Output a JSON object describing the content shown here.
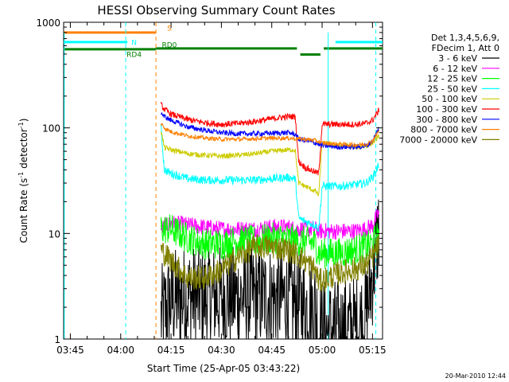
{
  "chart_data": {
    "type": "line",
    "title": "HESSI Observing Summary Count Rates",
    "xlabel": "Start Time (25-Apr-05 03:43:22)",
    "ylabel_main": "Count Rate (s",
    "ylabel_sup1": "-1",
    "ylabel_mid": " detector",
    "ylabel_sup2": "-1",
    "ylabel_end": ")",
    "yscale": "log",
    "ylim": [
      1,
      1000
    ],
    "xlim_min": [
      -2,
      93
    ],
    "x_units": "minutes after 03:45",
    "x_ticks": [
      {
        "value": 0,
        "label": "03:45"
      },
      {
        "value": 15,
        "label": "04:00"
      },
      {
        "value": 30,
        "label": "04:15"
      },
      {
        "value": 45,
        "label": "04:30"
      },
      {
        "value": 60,
        "label": "04:45"
      },
      {
        "value": 75,
        "label": "05:00"
      },
      {
        "value": 90,
        "label": "05:15"
      }
    ],
    "y_ticks": [
      {
        "value": 1,
        "label": "1"
      },
      {
        "value": 10,
        "label": "10"
      },
      {
        "value": 100,
        "label": "100"
      },
      {
        "value": 1000,
        "label": "1000"
      }
    ],
    "legend_header": [
      "Det 1,3,4,5,6,9,",
      "FDecim 1, Att 0"
    ],
    "series": [
      {
        "name": "3 - 6 keV",
        "color": "#000000",
        "noise": 0.5,
        "values": [
          [
            27,
            1.6
          ],
          [
            30,
            2.3
          ],
          [
            35,
            2.5
          ],
          [
            40,
            2.5
          ],
          [
            45,
            2.5
          ],
          [
            50,
            2.5
          ],
          [
            55,
            2.5
          ],
          [
            60,
            2.5
          ],
          [
            64,
            2.4
          ],
          [
            67,
            2.2
          ],
          [
            70,
            2.0
          ],
          [
            73,
            2.0
          ],
          [
            74,
            1.2
          ],
          [
            77,
            1.2
          ],
          [
            80,
            1.2
          ],
          [
            85,
            1.3
          ],
          [
            88,
            1.6
          ],
          [
            90,
            4.0
          ],
          [
            92,
            12
          ]
        ]
      },
      {
        "name": "6 - 12 keV",
        "color": "#ff00ff",
        "noise": 0.08,
        "values": [
          [
            27,
            11
          ],
          [
            30,
            12.5
          ],
          [
            35,
            12
          ],
          [
            40,
            11.5
          ],
          [
            45,
            11
          ],
          [
            50,
            11
          ],
          [
            55,
            11
          ],
          [
            60,
            11.5
          ],
          [
            65,
            11.5
          ],
          [
            67,
            11
          ],
          [
            70,
            11
          ],
          [
            73,
            11
          ],
          [
            74,
            10.5
          ],
          [
            77,
            10.5
          ],
          [
            80,
            10.5
          ],
          [
            85,
            10.5
          ],
          [
            88,
            11
          ],
          [
            90,
            12
          ],
          [
            92,
            16
          ]
        ]
      },
      {
        "name": "12 - 25 keV",
        "color": "#00ff00",
        "noise": 0.15,
        "values": [
          [
            27,
            11
          ],
          [
            30,
            11
          ],
          [
            35,
            9
          ],
          [
            40,
            8
          ],
          [
            45,
            8
          ],
          [
            50,
            8.5
          ],
          [
            55,
            8.5
          ],
          [
            60,
            9
          ],
          [
            65,
            9
          ],
          [
            67,
            8.5
          ],
          [
            70,
            8.5
          ],
          [
            73,
            8
          ],
          [
            74,
            6.5
          ],
          [
            77,
            6.5
          ],
          [
            80,
            6.5
          ],
          [
            85,
            7
          ],
          [
            88,
            7.5
          ],
          [
            90,
            8
          ],
          [
            92,
            10
          ]
        ]
      },
      {
        "name": "25 - 50 keV",
        "color": "#00ffff",
        "noise": 0.04,
        "values": [
          [
            27,
            100
          ],
          [
            28,
            40
          ],
          [
            30,
            37
          ],
          [
            35,
            33
          ],
          [
            40,
            32
          ],
          [
            45,
            32
          ],
          [
            50,
            32
          ],
          [
            55,
            32
          ],
          [
            60,
            33
          ],
          [
            65,
            34
          ],
          [
            67,
            33
          ],
          [
            68,
            14
          ],
          [
            70,
            13
          ],
          [
            73,
            12
          ],
          [
            74,
            11
          ],
          [
            75,
            28
          ],
          [
            80,
            28
          ],
          [
            85,
            29
          ],
          [
            88,
            30
          ],
          [
            90,
            34
          ],
          [
            92,
            45
          ]
        ]
      },
      {
        "name": "50 - 100 keV",
        "color": "#cccc00",
        "noise": 0.025,
        "values": [
          [
            27,
            95
          ],
          [
            28,
            65
          ],
          [
            30,
            62
          ],
          [
            35,
            57
          ],
          [
            40,
            55
          ],
          [
            45,
            54
          ],
          [
            50,
            55
          ],
          [
            55,
            57
          ],
          [
            60,
            60
          ],
          [
            65,
            62
          ],
          [
            67,
            62
          ],
          [
            68,
            30
          ],
          [
            70,
            28
          ],
          [
            73,
            25
          ],
          [
            74,
            23
          ],
          [
            75,
            72
          ],
          [
            80,
            68
          ],
          [
            85,
            66
          ],
          [
            88,
            67
          ],
          [
            90,
            72
          ],
          [
            92,
            85
          ]
        ]
      },
      {
        "name": "100 - 300 keV",
        "color": "#ff0000",
        "noise": 0.03,
        "values": [
          [
            27,
            165
          ],
          [
            28,
            150
          ],
          [
            30,
            135
          ],
          [
            35,
            120
          ],
          [
            40,
            112
          ],
          [
            45,
            108
          ],
          [
            50,
            110
          ],
          [
            55,
            115
          ],
          [
            60,
            122
          ],
          [
            65,
            128
          ],
          [
            67,
            128
          ],
          [
            68,
            48
          ],
          [
            70,
            42
          ],
          [
            73,
            38
          ],
          [
            74,
            37
          ],
          [
            75,
            108
          ],
          [
            80,
            108
          ],
          [
            85,
            108
          ],
          [
            88,
            110
          ],
          [
            90,
            118
          ],
          [
            92,
            148
          ]
        ]
      },
      {
        "name": "300 - 800 keV",
        "color": "#0000ff",
        "noise": 0.025,
        "values": [
          [
            27,
            140
          ],
          [
            28,
            128
          ],
          [
            30,
            118
          ],
          [
            35,
            102
          ],
          [
            40,
            95
          ],
          [
            45,
            90
          ],
          [
            50,
            88
          ],
          [
            55,
            88
          ],
          [
            60,
            89
          ],
          [
            65,
            90
          ],
          [
            67,
            87
          ],
          [
            68,
            78
          ],
          [
            70,
            76
          ],
          [
            73,
            72
          ],
          [
            75,
            68
          ],
          [
            80,
            66
          ],
          [
            85,
            66
          ],
          [
            88,
            67
          ],
          [
            90,
            75
          ],
          [
            92,
            100
          ]
        ]
      },
      {
        "name": "800 - 7000 keV",
        "color": "#ff8000",
        "noise": 0.02,
        "values": [
          [
            27,
            110
          ],
          [
            28,
            100
          ],
          [
            30,
            92
          ],
          [
            35,
            84
          ],
          [
            40,
            80
          ],
          [
            45,
            78
          ],
          [
            50,
            78
          ],
          [
            55,
            79
          ],
          [
            60,
            80
          ],
          [
            65,
            80
          ],
          [
            67,
            79
          ],
          [
            70,
            78
          ],
          [
            73,
            76
          ],
          [
            75,
            72
          ],
          [
            80,
            70
          ],
          [
            85,
            69
          ],
          [
            88,
            70
          ],
          [
            90,
            75
          ],
          [
            92,
            95
          ]
        ]
      },
      {
        "name": "7000 - 20000 keV",
        "color": "#808000",
        "noise": 0.12,
        "values": [
          [
            27,
            7
          ],
          [
            30,
            5.5
          ],
          [
            35,
            3.8
          ],
          [
            40,
            3.8
          ],
          [
            45,
            4.5
          ],
          [
            50,
            6
          ],
          [
            55,
            7.5
          ],
          [
            60,
            7.5
          ],
          [
            65,
            7
          ],
          [
            67,
            6.5
          ],
          [
            70,
            5.5
          ],
          [
            73,
            4.5
          ],
          [
            74,
            3.5
          ],
          [
            77,
            3.8
          ],
          [
            80,
            4.2
          ],
          [
            85,
            4.6
          ],
          [
            88,
            5
          ],
          [
            90,
            6
          ],
          [
            92,
            8
          ]
        ]
      }
    ],
    "flags": [
      {
        "label": "S",
        "color": "#ff8000",
        "x_start": -2,
        "x_end": 25.5,
        "level": 800
      },
      {
        "label": "N",
        "color": "#00ffff",
        "x_start": -2,
        "x_end": 17,
        "level": 650
      },
      {
        "label": "N",
        "color": "#00ffff",
        "x_start": 79,
        "x_end": 93,
        "level": 650
      },
      {
        "label": "RD4",
        "color": "#008000",
        "x_start": -2,
        "x_end": 25.5,
        "level": 555
      },
      {
        "label": "RD0",
        "color": "#008000",
        "x_start": 25.5,
        "x_end": 67.5,
        "level": 565
      },
      {
        "label": "",
        "color": "#008000",
        "x_start": 68.5,
        "x_end": 74.5,
        "level": 495
      },
      {
        "label": "",
        "color": "#008000",
        "x_start": 75.5,
        "x_end": 93,
        "level": 565
      }
    ],
    "flag_labels": [
      {
        "text": "S",
        "color": "#ff8000",
        "x": 29.5,
        "y": 830
      },
      {
        "text": "N",
        "color": "#00ffff",
        "x": 19,
        "y": 610
      },
      {
        "text": "RD0",
        "color": "#008000",
        "x": 29.5,
        "y": 580
      },
      {
        "text": "RD4",
        "color": "#008000",
        "x": 19,
        "y": 470
      }
    ],
    "vlines": [
      {
        "x": 16.5,
        "color": "#00ffff",
        "dash": true
      },
      {
        "x": 25.5,
        "color": "#ff8000",
        "dash": true
      },
      {
        "x": 91,
        "color": "#00ffff",
        "dash": true
      }
    ],
    "solid_vlines": [
      {
        "x": -1.8,
        "color": "#00ffff"
      },
      {
        "x": 76.8,
        "color": "#00ffff"
      }
    ],
    "gap_lines": [
      {
        "x": 68,
        "color": "#000000"
      },
      {
        "x": 74.5,
        "color": "#000000"
      }
    ],
    "timestamp": "20-Mar-2010 12:44"
  }
}
